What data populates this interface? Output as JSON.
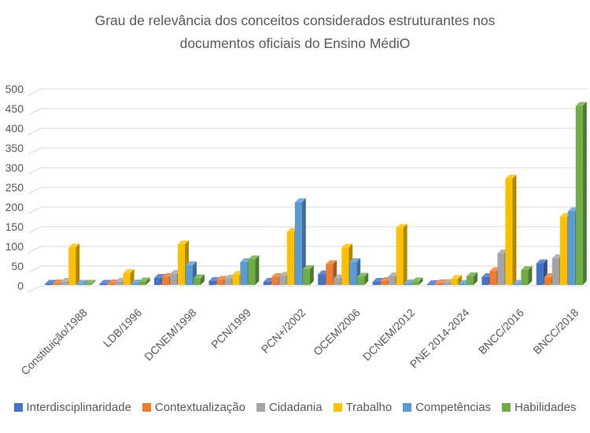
{
  "chart_data": {
    "type": "bar",
    "style": "3d-clustered-column",
    "title": "Grau de relevância dos conceitos considerados estruturantes nos documentos oficiais do Ensino MédiO",
    "categories": [
      "Constituição/1988",
      "LDB/1996",
      "DCNEM/1998",
      "PCN/1999",
      "PCN+/2002",
      "OCEM/2006",
      "DCNEM/2012",
      "PNE 2014-2024",
      "BNCC/2016",
      "BNCC/2018"
    ],
    "series": [
      {
        "name": "Interdisciplinaridade",
        "color": "#4472C4",
        "values": [
          3,
          3,
          18,
          10,
          8,
          27,
          8,
          2,
          20,
          55
        ]
      },
      {
        "name": "Contextualização",
        "color": "#ED7D31",
        "values": [
          4,
          4,
          20,
          13,
          20,
          53,
          10,
          4,
          35,
          20
        ]
      },
      {
        "name": "Cidadania",
        "color": "#A5A5A5",
        "values": [
          8,
          8,
          28,
          16,
          23,
          17,
          22,
          5,
          80,
          68
        ]
      },
      {
        "name": "Trabalho",
        "color": "#FFC000",
        "values": [
          95,
          30,
          103,
          26,
          135,
          95,
          145,
          15,
          270,
          173
        ]
      },
      {
        "name": "Competências",
        "color": "#5B9BD5",
        "values": [
          3,
          4,
          50,
          58,
          210,
          58,
          4,
          3,
          3,
          187
        ]
      },
      {
        "name": "Habilidades",
        "color": "#70AD47",
        "values": [
          3,
          9,
          17,
          65,
          40,
          21,
          9,
          22,
          38,
          455
        ]
      }
    ],
    "ylabel": "",
    "xlabel": "",
    "ylim": [
      0,
      500
    ],
    "ytick_step": 50,
    "grid": true,
    "legend_position": "bottom",
    "text_color": "#595959",
    "gridline_color": "#D9D9D9"
  }
}
